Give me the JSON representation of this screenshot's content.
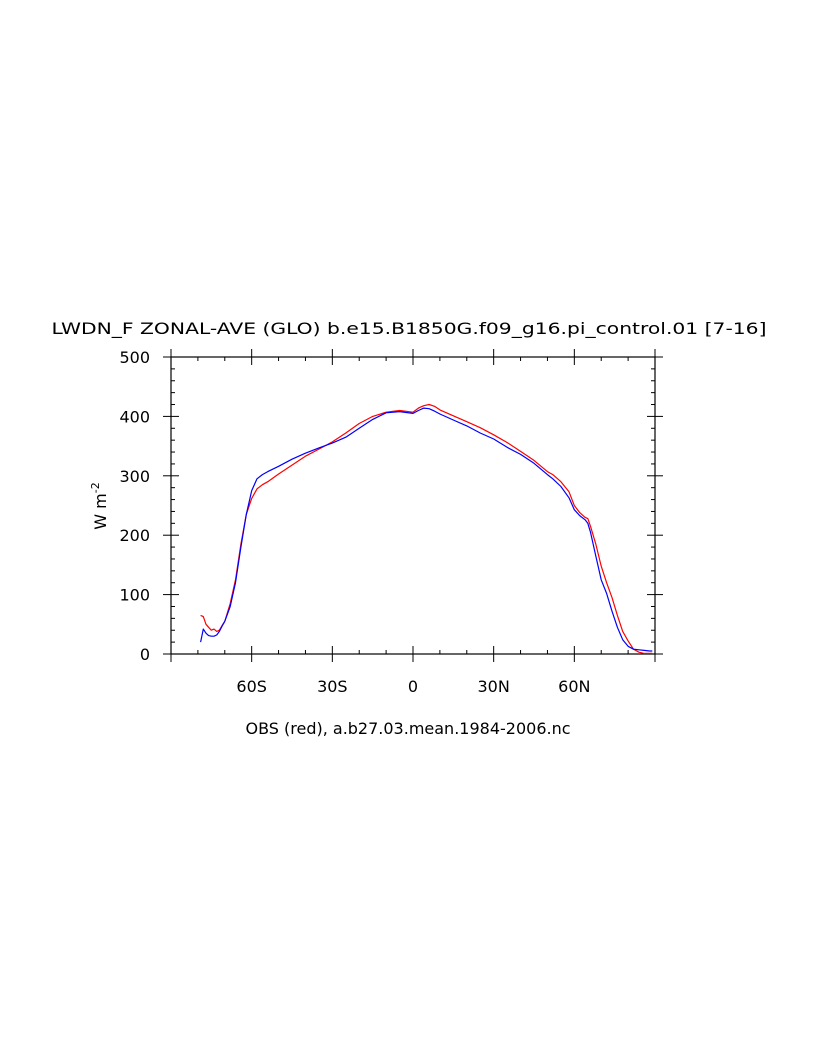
{
  "chart_data": {
    "type": "line",
    "title": "LWDN_F ZONAL-AVE (GLO) b.e15.B1850G.f09_g16.pi_control.01 [7-16]",
    "xlabel": "OBS (red), a.b27.03.mean.1984-2006.nc",
    "ylabel": "W m",
    "ylabel_exponent": "-2",
    "xlim": [
      -90,
      90
    ],
    "ylim": [
      0,
      500
    ],
    "yticks": [
      0,
      100,
      200,
      300,
      400,
      500
    ],
    "xticks": [
      {
        "value": -60,
        "label": "60S"
      },
      {
        "value": -30,
        "label": "30S"
      },
      {
        "value": 0,
        "label": "0"
      },
      {
        "value": 30,
        "label": "30N"
      },
      {
        "value": 60,
        "label": "60N"
      }
    ],
    "series": [
      {
        "color": "#ff0000",
        "x": [
          -79,
          -78,
          -77,
          -76,
          -75,
          -74,
          -73,
          -72,
          -71,
          -70,
          -68,
          -66,
          -64,
          -62,
          -60,
          -58,
          -56,
          -54,
          -50,
          -45,
          -40,
          -35,
          -30,
          -25,
          -20,
          -15,
          -10,
          -5,
          0,
          2,
          4,
          6,
          8,
          10,
          15,
          20,
          25,
          30,
          35,
          40,
          45,
          50,
          52,
          55,
          58,
          60,
          62,
          64,
          65,
          66,
          68,
          70,
          72,
          74,
          76,
          78,
          80,
          82,
          84,
          86,
          88,
          89
        ],
        "values": [
          65,
          63,
          50,
          45,
          40,
          42,
          38,
          40,
          48,
          55,
          85,
          125,
          185,
          235,
          262,
          278,
          285,
          290,
          303,
          318,
          333,
          345,
          357,
          372,
          388,
          400,
          407,
          410,
          407,
          414,
          418,
          420,
          417,
          411,
          401,
          391,
          381,
          369,
          356,
          341,
          326,
          307,
          302,
          290,
          273,
          250,
          238,
          230,
          228,
          215,
          185,
          148,
          120,
          95,
          65,
          38,
          22,
          8,
          3,
          1,
          1,
          1
        ]
      },
      {
        "color": "#0000ff",
        "x": [
          -79,
          -78,
          -77,
          -76,
          -75,
          -74,
          -73,
          -72,
          -71,
          -70,
          -68,
          -66,
          -64,
          -62,
          -60,
          -58,
          -56,
          -54,
          -50,
          -45,
          -40,
          -35,
          -30,
          -25,
          -20,
          -15,
          -10,
          -5,
          0,
          2,
          4,
          6,
          8,
          10,
          15,
          20,
          25,
          30,
          35,
          40,
          45,
          50,
          52,
          55,
          58,
          60,
          62,
          64,
          65,
          66,
          68,
          70,
          72,
          74,
          76,
          78,
          80,
          82,
          84,
          86,
          88,
          89
        ],
        "values": [
          20,
          42,
          35,
          31,
          30,
          30,
          32,
          38,
          47,
          55,
          80,
          120,
          180,
          235,
          275,
          295,
          302,
          307,
          316,
          328,
          338,
          347,
          355,
          365,
          380,
          395,
          406,
          408,
          405,
          410,
          414,
          413,
          409,
          404,
          394,
          384,
          372,
          362,
          348,
          336,
          321,
          302,
          295,
          282,
          263,
          243,
          233,
          226,
          220,
          205,
          165,
          125,
          102,
          72,
          45,
          24,
          13,
          8,
          7,
          6,
          5,
          5
        ]
      }
    ]
  }
}
